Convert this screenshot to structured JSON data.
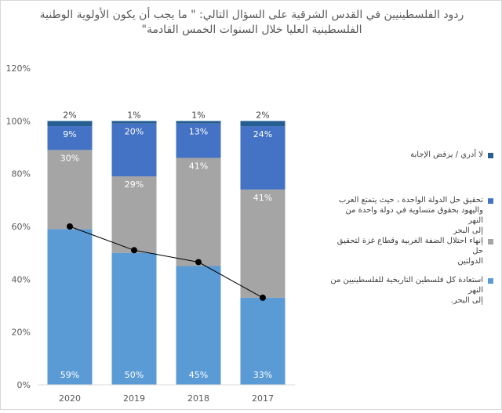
{
  "chart_data": {
    "type": "bar",
    "stacked": true,
    "title": "ردود الفلسطينيين في القدس الشرقية على السؤال التالي: \" ما يجب أن يكون الأولوية الوطنية الفلسطينية العليا خلال السنوات الخمس القادمة\"",
    "title_lines": [
      "ردود الفلسطينيين في القدس الشرقية على السؤال التالي: \" ما يجب أن يكون الأولوية الوطنية",
      "الفلسطينية العليا خلال السنوات الخمس القادمة\""
    ],
    "categories": [
      "2020",
      "2019",
      "2018",
      "2017"
    ],
    "y_ticks": [
      "0%",
      "20%",
      "40%",
      "60%",
      "80%",
      "100%",
      "120%"
    ],
    "ylim": [
      0,
      120
    ],
    "grid": false,
    "legend_position": "right",
    "series": [
      {
        "name": "استعادة كل فلسطين التاريخية للفلسطينيين من النهر إلى البحر.",
        "name_lines": [
          "استعادة كل فلسطين التاريخية للفلسطينيين من النهر",
          "إلى البحر."
        ],
        "color": "#5b9bd5",
        "values": [
          59,
          50,
          45,
          33
        ],
        "labels": [
          "59%",
          "50%",
          "45%",
          "33%"
        ]
      },
      {
        "name": "إنهاء احتلال الضفة الغربية وقطاع غزة لتحقيق حل الدولتين",
        "name_lines": [
          "إنهاء احتلال الضفة الغربية وقطاع غزة لتحقيق حل",
          "الدولتين"
        ],
        "color": "#a5a5a5",
        "values": [
          30,
          29,
          41,
          41
        ],
        "labels": [
          "30%",
          "29%",
          "41%",
          "41%"
        ]
      },
      {
        "name": "تحقيق حل الدولة الواحدة ، حيث يتمتع العرب واليهود بحقوق متساوية في دولة واحدة من النهر إلى البحر",
        "name_lines": [
          "تحقيق حل الدولة الواحدة ، حيث يتمتع العرب",
          "واليهود بحقوق متساوية في دولة واحدة من النهر",
          "إلى البحر"
        ],
        "color": "#4472c4",
        "values": [
          9,
          20,
          13,
          24
        ],
        "labels": [
          "9%",
          "20%",
          "13%",
          "24%"
        ]
      },
      {
        "name": "لا أدري / يرفض الإجابة",
        "name_lines": [
          "لا أدري / يرفض الإجابة"
        ],
        "color": "#255e91",
        "values": [
          2,
          1,
          1,
          2
        ],
        "labels": [
          "2%",
          "1%",
          "1%",
          "2%"
        ]
      }
    ],
    "trend_line": {
      "type": "line",
      "color": "#000000",
      "values": [
        60,
        51,
        46.5,
        33
      ]
    }
  }
}
